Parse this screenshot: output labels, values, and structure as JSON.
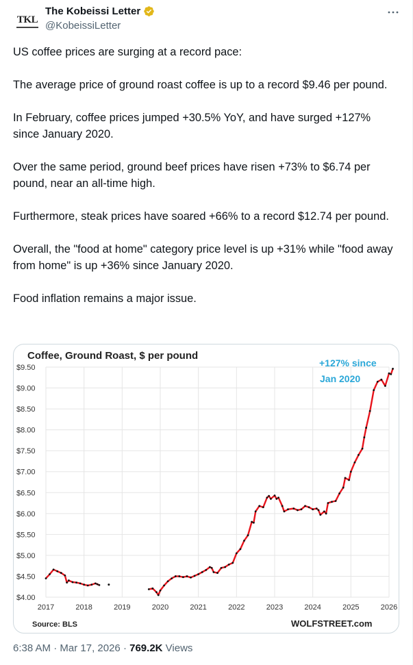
{
  "tweet": {
    "author": {
      "display_name": "The Kobeissi Letter",
      "handle": "@KobeissiLetter",
      "avatar_text": "TKL",
      "verified": true
    },
    "paragraphs": [
      "US coffee prices are surging at a record pace:",
      "The average price of ground roast coffee is up to a record $9.46 per pound.",
      "In February, coffee prices jumped +30.5% YoY, and have surged +127% since January 2020.",
      "Over the same period, ground beef prices have risen +73% to $6.74 per pound, near an all-time high.",
      "Furthermore, steak prices have soared +66% to a record $12.74 per pound.",
      "Overall, the \"food at home\" category price level is up +31% while \"food away from home\" is up +36% since January 2020.",
      "Food inflation remains a major issue."
    ],
    "time": "6:38 AM",
    "date": "Mar 17, 2026",
    "views_count": "769.2K",
    "views_label": "Views",
    "separator": "·"
  },
  "colors": {
    "line": "#e8141c",
    "annotation": "#2aa7d8",
    "grid": "#e5e5e5"
  },
  "chart_data": {
    "type": "line",
    "title": "Coffee, Ground Roast, $ per pound",
    "annotation": [
      "+127% since",
      "Jan 2020"
    ],
    "source": "Source: BLS",
    "brand": "WOLFSTREET.com",
    "ylim": [
      4.0,
      9.5
    ],
    "xlim": [
      2017,
      2026
    ],
    "y_ticks": [
      4.0,
      4.5,
      5.0,
      5.5,
      6.0,
      6.5,
      7.0,
      7.5,
      8.0,
      8.5,
      9.0,
      9.5
    ],
    "y_tick_labels": [
      "$4.00",
      "$4.50",
      "$5.00",
      "$5.50",
      "$6.00",
      "$6.50",
      "$7.00",
      "$7.50",
      "$8.00",
      "$8.50",
      "$9.00",
      "$9.50"
    ],
    "x_ticks": [
      2017,
      2018,
      2019,
      2020,
      2021,
      2022,
      2023,
      2024,
      2025,
      2026
    ],
    "x_tick_labels": [
      "2017",
      "2018",
      "2019",
      "2020",
      "2021",
      "2022",
      "2023",
      "2024",
      "2025",
      "2026"
    ],
    "segments": [
      [
        [
          2017.0,
          4.45
        ],
        [
          2017.1,
          4.55
        ],
        [
          2017.2,
          4.66
        ],
        [
          2017.3,
          4.62
        ],
        [
          2017.4,
          4.58
        ],
        [
          2017.5,
          4.52
        ],
        [
          2017.55,
          4.35
        ],
        [
          2017.6,
          4.4
        ],
        [
          2017.7,
          4.36
        ],
        [
          2017.8,
          4.35
        ],
        [
          2017.9,
          4.33
        ],
        [
          2018.0,
          4.3
        ],
        [
          2018.1,
          4.28
        ],
        [
          2018.2,
          4.3
        ],
        [
          2018.3,
          4.33
        ],
        [
          2018.35,
          4.31
        ],
        [
          2018.4,
          4.29
        ]
      ],
      [
        [
          2019.7,
          4.19
        ],
        [
          2019.8,
          4.21
        ],
        [
          2019.9,
          4.12
        ],
        [
          2019.95,
          4.05
        ],
        [
          2020.0,
          4.16
        ],
        [
          2020.1,
          4.28
        ],
        [
          2020.2,
          4.38
        ],
        [
          2020.3,
          4.45
        ],
        [
          2020.4,
          4.5
        ],
        [
          2020.5,
          4.5
        ],
        [
          2020.6,
          4.48
        ],
        [
          2020.7,
          4.5
        ],
        [
          2020.8,
          4.47
        ],
        [
          2020.9,
          4.51
        ],
        [
          2021.0,
          4.55
        ],
        [
          2021.1,
          4.6
        ],
        [
          2021.2,
          4.65
        ],
        [
          2021.3,
          4.72
        ],
        [
          2021.35,
          4.7
        ],
        [
          2021.4,
          4.6
        ],
        [
          2021.5,
          4.58
        ],
        [
          2021.6,
          4.7
        ],
        [
          2021.7,
          4.72
        ],
        [
          2021.8,
          4.78
        ],
        [
          2021.9,
          4.82
        ],
        [
          2022.0,
          5.05
        ],
        [
          2022.1,
          5.15
        ],
        [
          2022.2,
          5.35
        ],
        [
          2022.3,
          5.48
        ],
        [
          2022.4,
          5.8
        ],
        [
          2022.45,
          5.78
        ],
        [
          2022.5,
          6.05
        ],
        [
          2022.6,
          6.18
        ],
        [
          2022.7,
          6.15
        ],
        [
          2022.8,
          6.38
        ],
        [
          2022.85,
          6.42
        ],
        [
          2022.9,
          6.35
        ],
        [
          2023.0,
          6.43
        ],
        [
          2023.05,
          6.35
        ],
        [
          2023.1,
          6.38
        ],
        [
          2023.2,
          6.18
        ],
        [
          2023.25,
          6.05
        ],
        [
          2023.35,
          6.1
        ],
        [
          2023.5,
          6.12
        ],
        [
          2023.6,
          6.08
        ],
        [
          2023.7,
          6.1
        ],
        [
          2023.8,
          6.18
        ],
        [
          2023.9,
          6.15
        ],
        [
          2024.0,
          6.1
        ],
        [
          2024.1,
          6.12
        ],
        [
          2024.15,
          6.08
        ],
        [
          2024.2,
          5.97
        ],
        [
          2024.3,
          6.05
        ],
        [
          2024.35,
          6.0
        ],
        [
          2024.4,
          6.25
        ],
        [
          2024.5,
          6.28
        ],
        [
          2024.6,
          6.3
        ],
        [
          2024.7,
          6.48
        ],
        [
          2024.8,
          6.62
        ],
        [
          2024.85,
          6.85
        ],
        [
          2024.95,
          6.8
        ],
        [
          2025.0,
          7.0
        ],
        [
          2025.1,
          7.22
        ],
        [
          2025.2,
          7.4
        ],
        [
          2025.3,
          7.55
        ],
        [
          2025.35,
          7.82
        ],
        [
          2025.4,
          8.05
        ],
        [
          2025.5,
          8.45
        ],
        [
          2025.6,
          8.95
        ],
        [
          2025.7,
          9.15
        ],
        [
          2025.8,
          9.2
        ],
        [
          2025.9,
          9.05
        ],
        [
          2026.0,
          9.35
        ],
        [
          2026.05,
          9.33
        ],
        [
          2026.1,
          9.46
        ]
      ]
    ],
    "points": [
      [
        2018.65,
        4.3
      ]
    ]
  }
}
